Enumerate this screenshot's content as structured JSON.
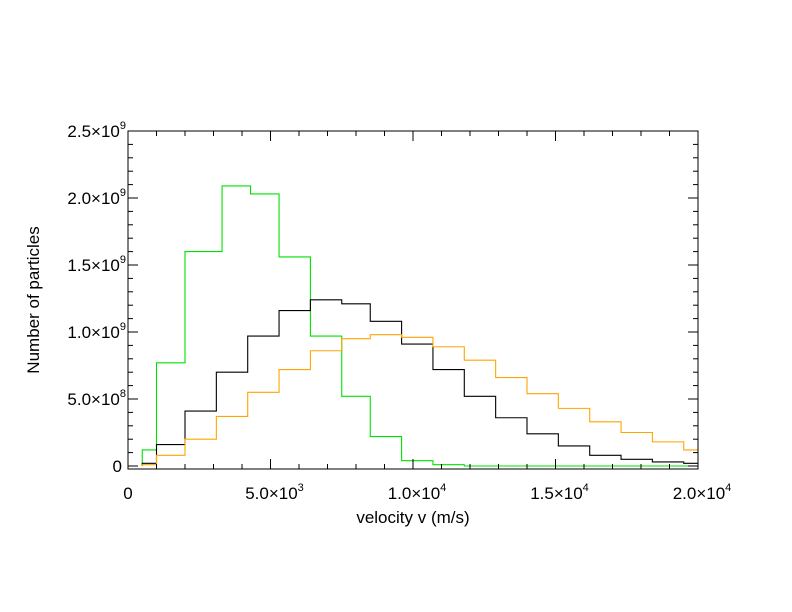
{
  "chart_data": {
    "type": "histogram-step",
    "xlabel": "velocity v (m/s)",
    "ylabel": "Number of particles",
    "xlim": [
      0,
      20000
    ],
    "ylim": [
      0,
      2500000000
    ],
    "x_ticks": [
      {
        "value": 0,
        "mant": "0",
        "exp": ""
      },
      {
        "value": 5000,
        "mant": "5.0×10",
        "exp": "3"
      },
      {
        "value": 10000,
        "mant": "1.0×10",
        "exp": "4"
      },
      {
        "value": 15000,
        "mant": "1.5×10",
        "exp": "4"
      },
      {
        "value": 20000,
        "mant": "2.0×10",
        "exp": "4"
      }
    ],
    "y_ticks": [
      {
        "value": 0,
        "mant": "0",
        "exp": ""
      },
      {
        "value": 500000000,
        "mant": "5.0×10",
        "exp": "8"
      },
      {
        "value": 1000000000,
        "mant": "1.0×10",
        "exp": "9"
      },
      {
        "value": 1500000000,
        "mant": "1.5×10",
        "exp": "9"
      },
      {
        "value": 2000000000,
        "mant": "2.0×10",
        "exp": "9"
      },
      {
        "value": 2500000000,
        "mant": "2.5×10",
        "exp": "9"
      }
    ],
    "x_minor_step": 1000,
    "y_minor_step": 100000000,
    "grid": false,
    "legend": "none",
    "series": [
      {
        "color": "#00e000",
        "bins": [
          {
            "x0": 500,
            "x1": 1000,
            "y": 120000000
          },
          {
            "x0": 1000,
            "x1": 2000,
            "y": 770000000
          },
          {
            "x0": 2000,
            "x1": 3300,
            "y": 1600000000
          },
          {
            "x0": 3300,
            "x1": 4300,
            "y": 2090000000
          },
          {
            "x0": 4300,
            "x1": 5300,
            "y": 2030000000
          },
          {
            "x0": 5300,
            "x1": 6400,
            "y": 1560000000
          },
          {
            "x0": 6400,
            "x1": 7500,
            "y": 970000000
          },
          {
            "x0": 7500,
            "x1": 8500,
            "y": 520000000
          },
          {
            "x0": 8500,
            "x1": 9600,
            "y": 220000000
          },
          {
            "x0": 9600,
            "x1": 10700,
            "y": 40000000
          },
          {
            "x0": 10700,
            "x1": 11800,
            "y": 10000000
          },
          {
            "x0": 11800,
            "x1": 20000,
            "y": 0
          }
        ]
      },
      {
        "color": "#000000",
        "bins": [
          {
            "x0": 500,
            "x1": 1000,
            "y": 20000000
          },
          {
            "x0": 1000,
            "x1": 2000,
            "y": 160000000
          },
          {
            "x0": 2000,
            "x1": 3100,
            "y": 410000000
          },
          {
            "x0": 3100,
            "x1": 4200,
            "y": 700000000
          },
          {
            "x0": 4200,
            "x1": 5300,
            "y": 970000000
          },
          {
            "x0": 5300,
            "x1": 6400,
            "y": 1160000000
          },
          {
            "x0": 6400,
            "x1": 7500,
            "y": 1240000000
          },
          {
            "x0": 7500,
            "x1": 8500,
            "y": 1210000000
          },
          {
            "x0": 8500,
            "x1": 9600,
            "y": 1080000000
          },
          {
            "x0": 9600,
            "x1": 10700,
            "y": 910000000
          },
          {
            "x0": 10700,
            "x1": 11800,
            "y": 720000000
          },
          {
            "x0": 11800,
            "x1": 12900,
            "y": 520000000
          },
          {
            "x0": 12900,
            "x1": 14000,
            "y": 360000000
          },
          {
            "x0": 14000,
            "x1": 15100,
            "y": 240000000
          },
          {
            "x0": 15100,
            "x1": 16200,
            "y": 150000000
          },
          {
            "x0": 16200,
            "x1": 17300,
            "y": 80000000
          },
          {
            "x0": 17300,
            "x1": 18400,
            "y": 50000000
          },
          {
            "x0": 18400,
            "x1": 19500,
            "y": 30000000
          },
          {
            "x0": 19500,
            "x1": 20000,
            "y": 20000000
          }
        ]
      },
      {
        "color": "#ffa500",
        "bins": [
          {
            "x0": 500,
            "x1": 1000,
            "y": 10000000
          },
          {
            "x0": 1000,
            "x1": 2000,
            "y": 80000000
          },
          {
            "x0": 2000,
            "x1": 3100,
            "y": 200000000
          },
          {
            "x0": 3100,
            "x1": 4200,
            "y": 370000000
          },
          {
            "x0": 4200,
            "x1": 5300,
            "y": 550000000
          },
          {
            "x0": 5300,
            "x1": 6400,
            "y": 720000000
          },
          {
            "x0": 6400,
            "x1": 7500,
            "y": 860000000
          },
          {
            "x0": 7500,
            "x1": 8500,
            "y": 950000000
          },
          {
            "x0": 8500,
            "x1": 9600,
            "y": 980000000
          },
          {
            "x0": 9600,
            "x1": 10700,
            "y": 960000000
          },
          {
            "x0": 10700,
            "x1": 11800,
            "y": 890000000
          },
          {
            "x0": 11800,
            "x1": 12900,
            "y": 790000000
          },
          {
            "x0": 12900,
            "x1": 14000,
            "y": 660000000
          },
          {
            "x0": 14000,
            "x1": 15100,
            "y": 540000000
          },
          {
            "x0": 15100,
            "x1": 16200,
            "y": 430000000
          },
          {
            "x0": 16200,
            "x1": 17300,
            "y": 330000000
          },
          {
            "x0": 17300,
            "x1": 18400,
            "y": 250000000
          },
          {
            "x0": 18400,
            "x1": 19500,
            "y": 180000000
          },
          {
            "x0": 19500,
            "x1": 20000,
            "y": 120000000
          }
        ]
      }
    ]
  }
}
